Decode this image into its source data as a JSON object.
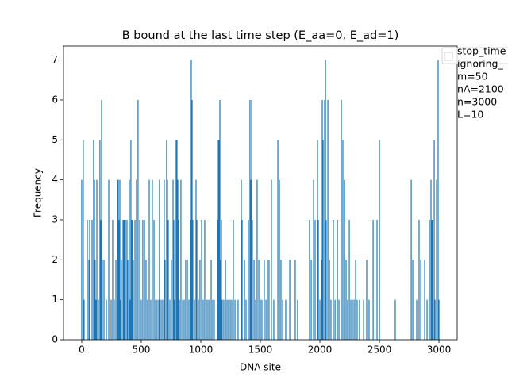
{
  "chart_data": {
    "type": "bar",
    "title": "B bound at the last time step (E_aa=0, E_ad=1)",
    "x_label": "DNA site",
    "y_label": "Frequency",
    "color": "#1f77b4",
    "x": [
      0,
      13,
      20,
      47,
      60,
      67,
      87,
      100,
      107,
      113,
      120,
      127,
      140,
      153,
      160,
      167,
      173,
      187,
      207,
      227,
      247,
      260,
      273,
      287,
      300,
      307,
      313,
      320,
      327,
      333,
      347,
      353,
      360,
      367,
      380,
      387,
      400,
      407,
      413,
      420,
      427,
      433,
      447,
      460,
      473,
      487,
      500,
      513,
      527,
      540,
      553,
      567,
      580,
      593,
      607,
      620,
      633,
      647,
      653,
      667,
      680,
      693,
      700,
      713,
      720,
      727,
      740,
      753,
      767,
      773,
      780,
      793,
      800,
      807,
      813,
      820,
      833,
      847,
      860,
      873,
      887,
      900,
      913,
      920,
      927,
      933,
      947,
      960,
      967,
      980,
      993,
      1007,
      1020,
      1033,
      1047,
      1060,
      1073,
      1087,
      1100,
      1113,
      1140,
      1147,
      1153,
      1160,
      1167,
      1173,
      1180,
      1193,
      1207,
      1220,
      1233,
      1247,
      1260,
      1273,
      1287,
      1313,
      1340,
      1347,
      1367,
      1380,
      1400,
      1413,
      1420,
      1427,
      1433,
      1447,
      1460,
      1473,
      1487,
      1500,
      1513,
      1533,
      1547,
      1560,
      1573,
      1593,
      1613,
      1647,
      1660,
      1673,
      1687,
      1713,
      1747,
      1793,
      1813,
      1913,
      1927,
      1947,
      1960,
      1980,
      1987,
      2000,
      2013,
      2020,
      2027,
      2040,
      2047,
      2053,
      2067,
      2080,
      2093,
      2113,
      2127,
      2147,
      2160,
      2180,
      2193,
      2207,
      2220,
      2233,
      2247,
      2260,
      2273,
      2287,
      2300,
      2313,
      2333,
      2367,
      2393,
      2413,
      2447,
      2480,
      2500,
      2633,
      2767,
      2780,
      2813,
      2833,
      2847,
      2880,
      2900,
      2920,
      2933,
      2940,
      2947,
      2960,
      2967,
      2980,
      2993,
      3000
    ],
    "values": [
      4,
      5,
      1,
      3,
      2,
      3,
      3,
      5,
      4,
      2,
      1,
      4,
      1,
      5,
      3,
      6,
      2,
      2,
      1,
      4,
      1,
      3,
      1,
      2,
      4,
      4,
      3,
      4,
      1,
      2,
      3,
      3,
      3,
      3,
      3,
      2,
      4,
      1,
      5,
      3,
      3,
      2,
      3,
      4,
      6,
      3,
      1,
      3,
      3,
      2,
      1,
      4,
      1,
      4,
      3,
      1,
      1,
      1,
      4,
      1,
      1,
      4,
      2,
      5,
      4,
      3,
      1,
      2,
      4,
      3,
      1,
      5,
      5,
      4,
      3,
      1,
      4,
      1,
      1,
      2,
      2,
      1,
      3,
      7,
      6,
      3,
      1,
      4,
      3,
      1,
      2,
      3,
      1,
      3,
      1,
      1,
      1,
      2,
      1,
      1,
      3,
      5,
      5,
      6,
      2,
      3,
      1,
      1,
      2,
      1,
      1,
      1,
      1,
      3,
      1,
      1,
      4,
      3,
      2,
      1,
      3,
      6,
      4,
      6,
      3,
      2,
      1,
      4,
      2,
      1,
      1,
      2,
      1,
      2,
      2,
      4,
      1,
      5,
      4,
      2,
      1,
      1,
      2,
      2,
      1,
      3,
      2,
      4,
      3,
      5,
      3,
      1,
      2,
      6,
      5,
      6,
      7,
      3,
      6,
      2,
      1,
      3,
      1,
      3,
      1,
      6,
      5,
      4,
      2,
      1,
      3,
      1,
      1,
      1,
      2,
      1,
      1,
      1,
      2,
      1,
      3,
      3,
      5,
      1,
      4,
      2,
      1,
      3,
      2,
      2,
      1,
      3,
      4,
      3,
      3,
      5,
      1,
      4,
      7,
      1
    ],
    "xlim": [
      -153,
      3153
    ],
    "ylim": [
      0,
      7.35
    ],
    "xticks": [
      0,
      500,
      1000,
      1500,
      2000,
      2500,
      3000
    ],
    "yticks": [
      0,
      1,
      2,
      3,
      4,
      5,
      6,
      7
    ],
    "legend_position": "upper right",
    "legend_text": [
      "stop_time",
      "ignoring_",
      "m=50",
      "nA=2100",
      "n=3000",
      "L=10"
    ]
  }
}
